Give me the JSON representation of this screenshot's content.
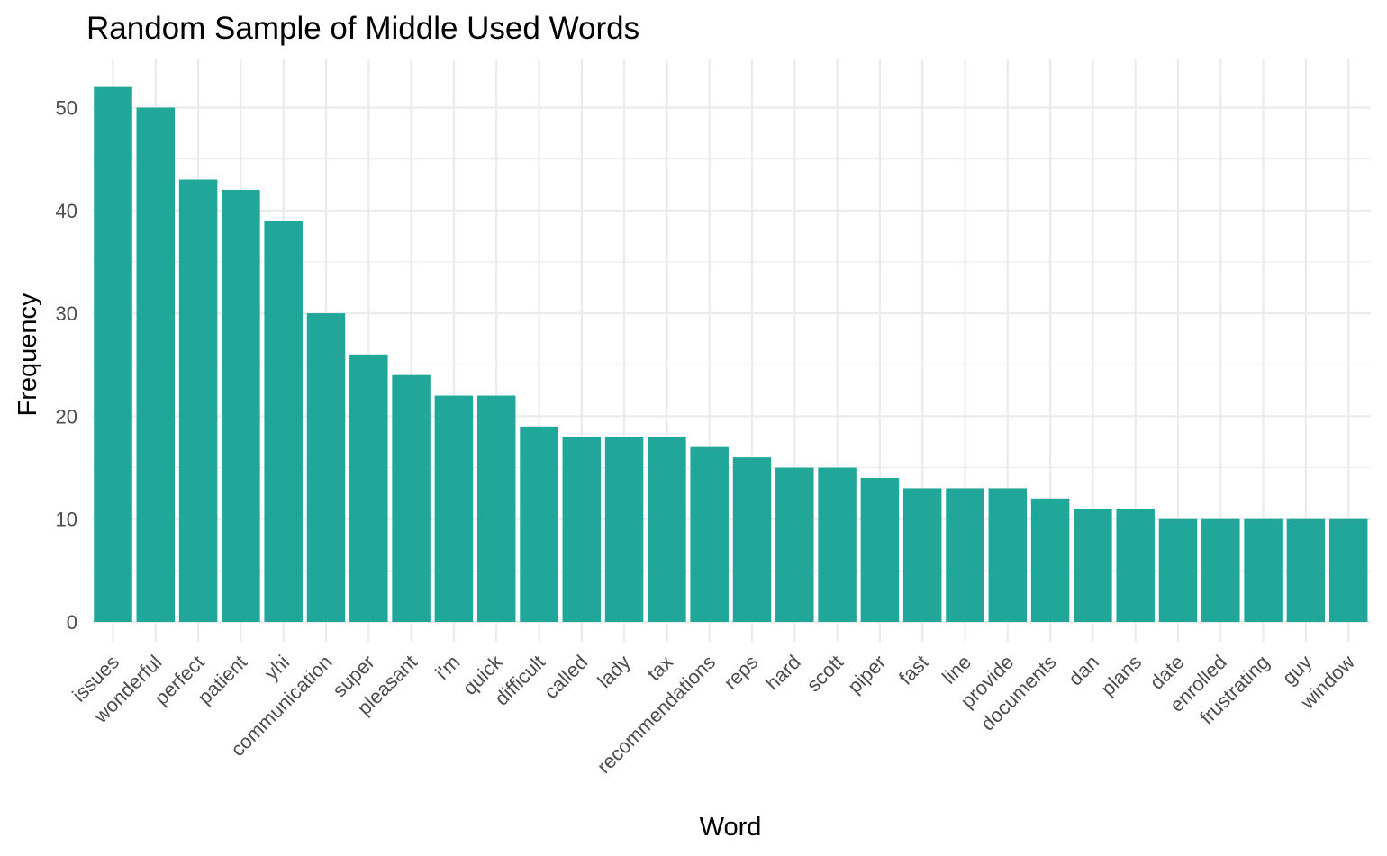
{
  "chart_data": {
    "type": "bar",
    "title": "Random Sample of Middle Used Words",
    "xlabel": "Word",
    "ylabel": "Frequency",
    "categories": [
      "issues",
      "wonderful",
      "perfect",
      "patient",
      "yhi",
      "communication",
      "super",
      "pleasant",
      "i'm",
      "quick",
      "difficult",
      "called",
      "lady",
      "tax",
      "recommendations",
      "reps",
      "hard",
      "scott",
      "piper",
      "fast",
      "line",
      "provide",
      "documents",
      "dan",
      "plans",
      "date",
      "enrolled",
      "frustrating",
      "guy",
      "window"
    ],
    "values": [
      52,
      50,
      43,
      42,
      39,
      30,
      26,
      24,
      22,
      22,
      19,
      18,
      18,
      18,
      17,
      16,
      15,
      15,
      14,
      13,
      13,
      13,
      12,
      11,
      11,
      10,
      10,
      10,
      10,
      10
    ],
    "yticks": [
      0,
      10,
      20,
      30,
      40,
      50
    ],
    "ylim": [
      0,
      54.6
    ],
    "grid": true,
    "bar_color": "#21a69a"
  }
}
